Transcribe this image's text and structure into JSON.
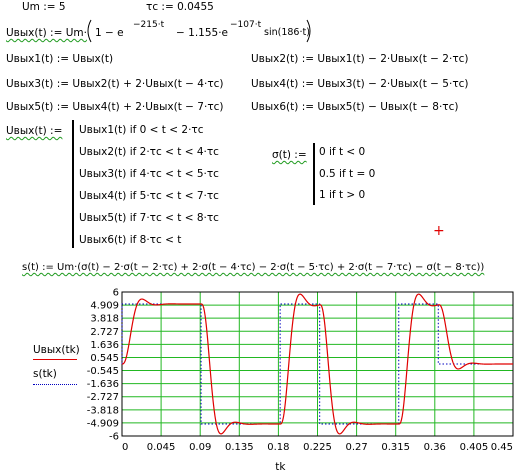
{
  "defs": {
    "um": "Um := 5",
    "tc": "τc := 0.0455",
    "uvh_lhs": "Uвых(t) := Um·",
    "uvh_a": "1 − e",
    "uvh_e1": "−215·t",
    "uvh_b": "− 1.155·e",
    "uvh_e2": "−107·t",
    "uvh_c": "sin(186·t)",
    "u1": "Uвых1(t) := Uвых(t)",
    "u2": "Uвых2(t) := Uвых1(t) − 2·Uвых(t − 2·τc)",
    "u3": "Uвых3(t) := Uвых2(t) + 2·Uвых(t − 4·τc)",
    "u4": "Uвых4(t) := Uвых3(t) − 2·Uвых(t − 5·τc)",
    "u5": "Uвых5(t) := Uвых4(t) + 2·Uвых(t − 7·τc)",
    "u6": "Uвых6(t) := Uвых5(t) − Uвых(t − 8·τc)"
  },
  "piecewise": {
    "lhs": "Uвых(t) :=",
    "rows": [
      "Uвых1(t)  if  0 < t < 2·τc",
      "Uвых2(t)  if  2·τc < t < 4·τc",
      "Uвых3(t)  if  4·τc < t < 5·τc",
      "Uвых4(t)  if  5·τc < t < 7·τc",
      "Uвых5(t)  if  7·τc < t < 8·τc",
      "Uвых6(t)  if  8·τc < t"
    ]
  },
  "sigma": {
    "lhs": "σ(t) :=",
    "rows": [
      "0  if  t < 0",
      "0.5  if  t = 0",
      "1  if  t > 0"
    ]
  },
  "s_def": "s(t) := Um·(σ(t) − 2·σ(t − 2·τc) + 2·σ(t − 4·τc) − 2·σ(t − 5·τc) + 2·σ(t − 7·τc) − σ(t − 8·τc))",
  "cursor": "+",
  "chart_data": {
    "type": "line",
    "xlabel": "tk",
    "legend": [
      "Uвых(tk)",
      "s(tk)"
    ],
    "xlim": [
      0,
      0.45
    ],
    "ylim": [
      -6,
      6
    ],
    "x_ticks": [
      "0",
      "0.045",
      "0.09",
      "0.135",
      "0.18",
      "0.225",
      "0.27",
      "0.315",
      "0.36",
      "0.405",
      "0.45"
    ],
    "y_ticks": [
      "6",
      "4.909",
      "3.818",
      "2.727",
      "1.636",
      "0.545",
      "-0.545",
      "-1.636",
      "-2.727",
      "-3.818",
      "-4.909",
      "-6"
    ],
    "grid": true,
    "series": [
      {
        "name": "Uвых(tk)",
        "color": "#e00000",
        "style": "solid",
        "model": "damped step response"
      },
      {
        "name": "s(tk)",
        "color": "#0000c0",
        "style": "dotted",
        "model": "ideal step",
        "steps": [
          {
            "t": 0,
            "amp": 5
          },
          {
            "t": 0.091,
            "amp": -10
          },
          {
            "t": 0.182,
            "amp": 10
          },
          {
            "t": 0.2275,
            "amp": -10
          },
          {
            "t": 0.3185,
            "amp": 10
          },
          {
            "t": 0.364,
            "amp": -5
          }
        ]
      }
    ]
  }
}
